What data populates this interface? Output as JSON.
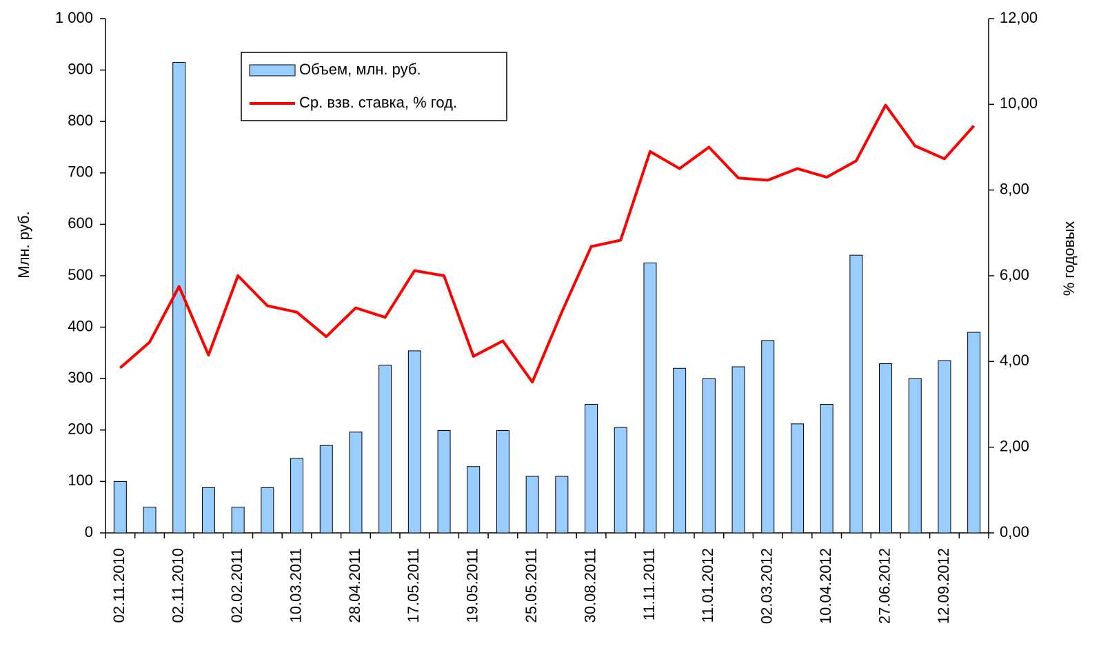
{
  "chart_data": {
    "type": "bar_line",
    "y_label": "Млн. руб.",
    "y2_label": "% годовых",
    "categories": [
      "02.11.2010",
      null,
      "02.11.2010",
      null,
      "02.02.2011",
      null,
      "10.03.2011",
      null,
      "28.04.2011",
      null,
      "17.05.2011",
      null,
      "19.05.2011",
      null,
      "25.05.2011",
      null,
      "30.08.2011",
      null,
      "11.11.2011",
      null,
      "11.01.2012",
      null,
      "02.03.2012",
      null,
      "10.04.2012",
      null,
      "27.06.2012",
      null,
      "12.09.2012",
      null
    ],
    "series": [
      {
        "name": "Объем, млн. руб.",
        "color": "#99ccff",
        "type": "bar",
        "values": [
          100,
          50,
          915,
          88,
          50,
          88,
          145,
          170,
          196,
          326,
          354,
          199,
          129,
          199,
          110,
          110,
          250,
          205,
          525,
          320,
          300,
          323,
          374,
          212,
          250,
          540,
          329,
          300,
          335,
          390
        ]
      },
      {
        "name": "Ср. взв. ставка, % год.",
        "color": "#ff0000",
        "type": "line",
        "axis": "y2",
        "values": [
          3.85,
          4.45,
          5.75,
          4.15,
          6.0,
          5.3,
          5.15,
          4.58,
          5.25,
          5.03,
          6.12,
          6.0,
          4.12,
          4.48,
          3.52,
          5.15,
          6.68,
          6.83,
          8.9,
          8.5,
          9.0,
          8.28,
          8.23,
          8.5,
          8.3,
          8.68,
          9.98,
          9.03,
          8.73,
          9.5
        ]
      }
    ],
    "ylim": [
      0,
      1000
    ],
    "yticks": [
      0,
      100,
      200,
      300,
      400,
      500,
      600,
      700,
      800,
      900,
      {
        "value": 1000,
        "label": "1 000"
      }
    ],
    "y2lim": [
      0,
      12
    ],
    "y2ticks": [
      {
        "value": 0,
        "label": "0,00"
      },
      {
        "value": 2,
        "label": "2,00"
      },
      {
        "value": 4,
        "label": "4,00"
      },
      {
        "value": 6,
        "label": "6,00"
      },
      {
        "value": 8,
        "label": "8,00"
      },
      {
        "value": 10,
        "label": "10,00"
      },
      {
        "value": 12,
        "label": "12,00"
      }
    ],
    "grid": false
  }
}
